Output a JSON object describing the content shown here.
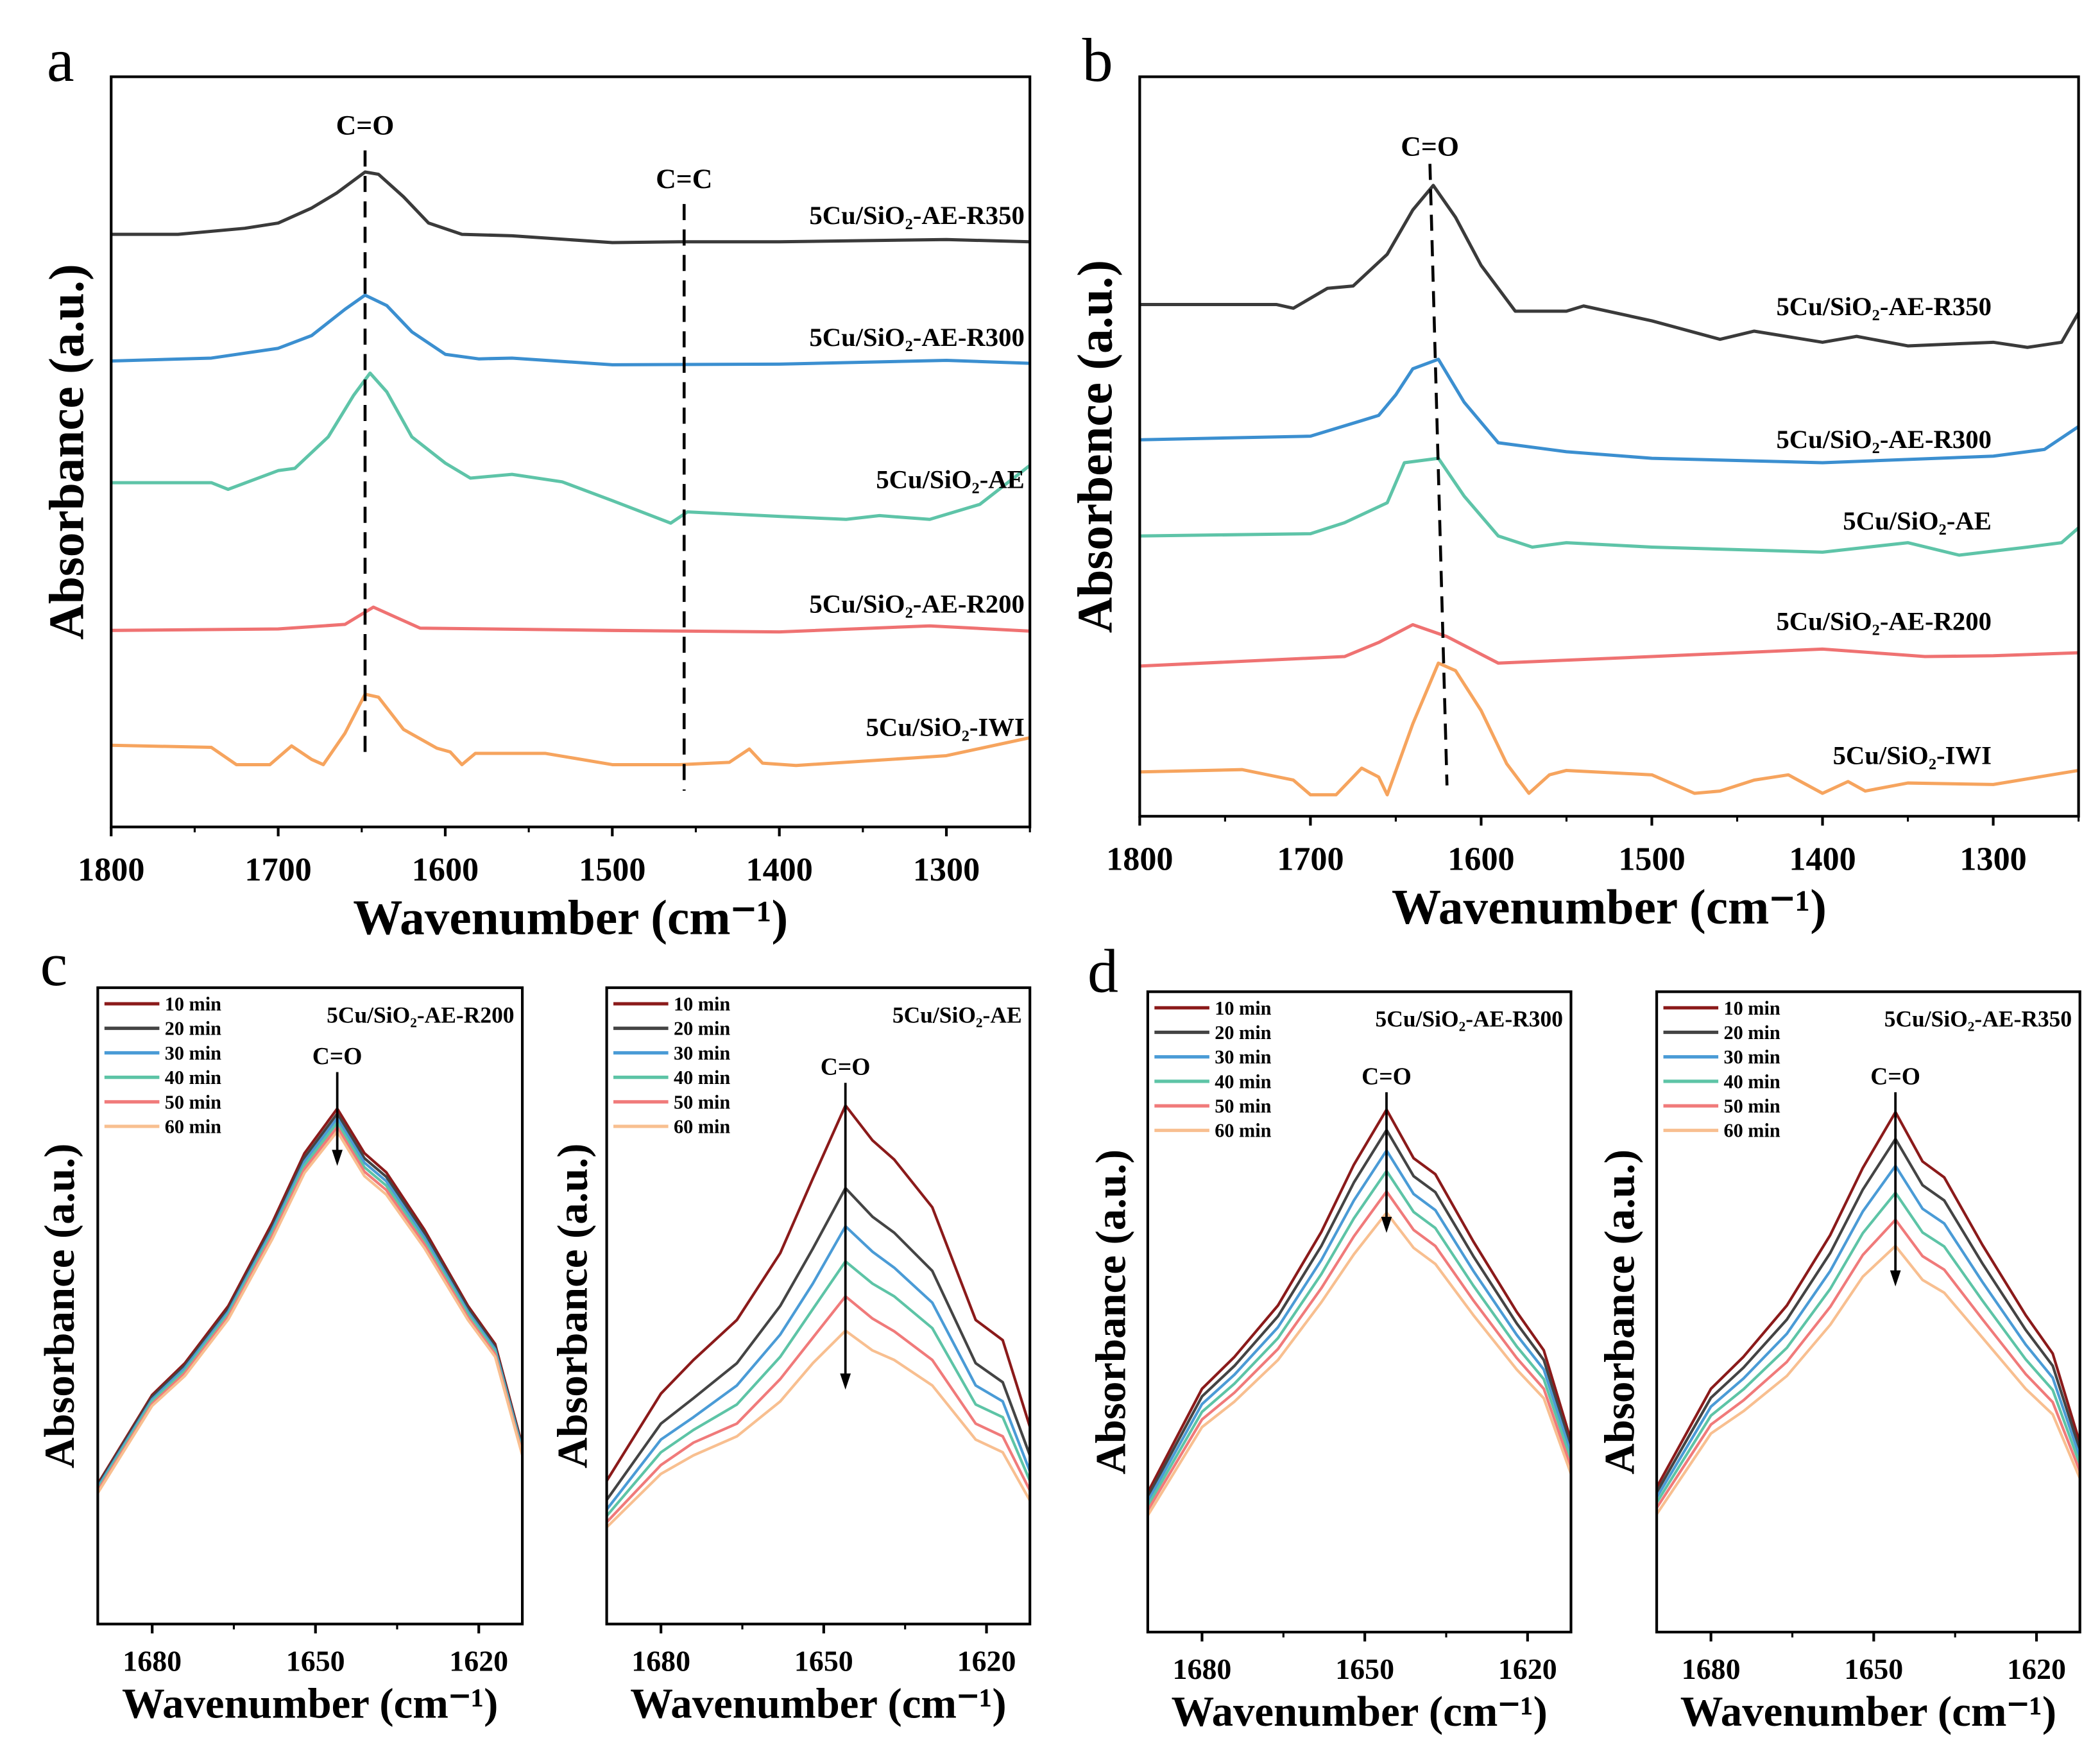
{
  "colors": {
    "R350": "#3a3a3a",
    "R300": "#3b8fd0",
    "AE": "#5ec4a8",
    "R200": "#ef7272",
    "IWI": "#f6a45e",
    "t10": "#8b1a1a",
    "t20": "#444444",
    "t30": "#4a9bd6",
    "t40": "#5dc4a6",
    "t50": "#f07a7a",
    "t60": "#f8bf90"
  },
  "chart_data": [
    {
      "panel": "a",
      "type": "line",
      "xlabel": "Wavenumber (cm⁻¹)",
      "ylabel": "Absorbance (a.u.)",
      "xlim": [
        1800,
        1250
      ],
      "ylim": [
        0,
        100
      ],
      "xticks": [
        "1800",
        "1700",
        "1600",
        "1500",
        "1400",
        "1300"
      ],
      "annotations": [
        {
          "text": "C=O",
          "x": 1648
        },
        {
          "text": "C=C",
          "x": 1457
        }
      ],
      "series": [
        {
          "name": "5Cu/SiO₂-AE-R350",
          "color": "R350",
          "x": [
            1800,
            1760,
            1720,
            1700,
            1680,
            1665,
            1648,
            1640,
            1625,
            1610,
            1590,
            1560,
            1500,
            1460,
            1400,
            1300,
            1250
          ],
          "y": [
            79,
            79,
            79.8,
            80.5,
            82.5,
            84.5,
            87.3,
            87,
            84,
            80.5,
            79,
            78.8,
            77.9,
            78,
            78,
            78.3,
            78
          ]
        },
        {
          "name": "5Cu/SiO₂-AE-R300",
          "color": "R300",
          "x": [
            1800,
            1740,
            1700,
            1680,
            1660,
            1648,
            1635,
            1620,
            1600,
            1580,
            1560,
            1500,
            1400,
            1300,
            1250
          ],
          "y": [
            62.1,
            62.5,
            63.8,
            65.5,
            69,
            70.9,
            69.5,
            66,
            63,
            62.4,
            62.5,
            61.6,
            61.7,
            62.2,
            61.8
          ]
        },
        {
          "name": "5Cu/SiO₂-AE",
          "color": "AE",
          "x": [
            1800,
            1740,
            1730,
            1700,
            1690,
            1670,
            1655,
            1645,
            1635,
            1620,
            1600,
            1585,
            1560,
            1530,
            1500,
            1465,
            1455,
            1400,
            1360,
            1340,
            1310,
            1280,
            1250
          ],
          "y": [
            45.9,
            45.9,
            45,
            47.5,
            47.8,
            52,
            57.5,
            60.5,
            58,
            52,
            48.5,
            46.5,
            47,
            46,
            43.5,
            40.5,
            42,
            41.4,
            41,
            41.5,
            41,
            43,
            48.2
          ]
        },
        {
          "name": "5Cu/SiO₂-AE-R200",
          "color": "R200",
          "x": [
            1800,
            1700,
            1660,
            1643,
            1630,
            1615,
            1500,
            1400,
            1310,
            1250
          ],
          "y": [
            26.2,
            26.4,
            27,
            29.3,
            28,
            26.5,
            26.2,
            26,
            26.8,
            26.1
          ]
        },
        {
          "name": "5Cu/SiO₂-IWI",
          "color": "IWI",
          "x": [
            1800,
            1740,
            1725,
            1705,
            1692,
            1680,
            1673,
            1660,
            1648,
            1640,
            1625,
            1605,
            1597,
            1590,
            1582,
            1540,
            1500,
            1460,
            1430,
            1418,
            1410,
            1390,
            1320,
            1300,
            1250
          ],
          "y": [
            10.9,
            10.6,
            8.3,
            8.3,
            10.8,
            9,
            8.3,
            12.5,
            17.7,
            17.3,
            13,
            10.5,
            10,
            8.3,
            9.8,
            9.8,
            8.3,
            8.3,
            8.6,
            10.4,
            8.5,
            8.2,
            9.2,
            9.5,
            11.9
          ]
        }
      ]
    },
    {
      "panel": "b",
      "type": "line",
      "xlabel": "Wavenumber (cm⁻¹)",
      "ylabel": "Absorbence (a.u.)",
      "xlim": [
        1800,
        1250
      ],
      "ylim": [
        0,
        100
      ],
      "xticks": [
        "1800",
        "1700",
        "1600",
        "1500",
        "1400",
        "1300"
      ],
      "annotations": [
        {
          "text": "C=O",
          "x": 1630
        }
      ],
      "series": [
        {
          "name": "5Cu/SiO₂-AE-R350",
          "color": "R350",
          "x": [
            1800,
            1720,
            1710,
            1690,
            1675,
            1655,
            1640,
            1628,
            1615,
            1600,
            1580,
            1550,
            1540,
            1500,
            1460,
            1440,
            1400,
            1380,
            1350,
            1300,
            1280,
            1260,
            1250
          ],
          "y": [
            69.2,
            69.2,
            68.7,
            71.4,
            71.7,
            76,
            82,
            85.3,
            81,
            74.5,
            68.3,
            68.3,
            69,
            67,
            64.5,
            65.6,
            64.1,
            64.9,
            63.6,
            64.1,
            63.4,
            64.1,
            68.1
          ]
        },
        {
          "name": "5Cu/SiO₂-AE-R300",
          "color": "R300",
          "x": [
            1800,
            1700,
            1670,
            1660,
            1650,
            1640,
            1625,
            1610,
            1590,
            1550,
            1500,
            1400,
            1300,
            1270,
            1250
          ],
          "y": [
            50.9,
            51.4,
            53.5,
            54.2,
            57,
            60.5,
            61.8,
            56,
            50.5,
            49.3,
            48.4,
            47.8,
            48.7,
            49.6,
            52.7
          ]
        },
        {
          "name": "5Cu/SiO₂-AE",
          "color": "AE",
          "x": [
            1800,
            1700,
            1680,
            1655,
            1645,
            1625,
            1610,
            1590,
            1570,
            1550,
            1500,
            1400,
            1350,
            1320,
            1280,
            1260,
            1250
          ],
          "y": [
            37.9,
            38.2,
            39.7,
            42.4,
            47.8,
            48.4,
            43.3,
            37.9,
            36.4,
            37,
            36.4,
            35.7,
            37,
            35.3,
            36.4,
            37,
            39
          ]
        },
        {
          "name": "5Cu/SiO₂-AE-R200",
          "color": "R200",
          "x": [
            1800,
            1680,
            1660,
            1640,
            1620,
            1600,
            1590,
            1500,
            1400,
            1340,
            1300,
            1250
          ],
          "y": [
            20.3,
            21.6,
            23.5,
            25.9,
            24.3,
            21.9,
            20.7,
            21.6,
            22.6,
            21.6,
            21.7,
            22.1
          ]
        },
        {
          "name": "5Cu/SiO₂-IWI",
          "color": "IWI",
          "x": [
            1800,
            1740,
            1710,
            1700,
            1685,
            1670,
            1660,
            1655,
            1640,
            1625,
            1615,
            1600,
            1585,
            1572,
            1560,
            1550,
            1500,
            1475,
            1460,
            1440,
            1420,
            1400,
            1385,
            1375,
            1350,
            1300,
            1250
          ],
          "y": [
            6,
            6.3,
            4.9,
            2.9,
            2.9,
            6.5,
            5.3,
            2.9,
            12.5,
            20.7,
            19.7,
            14.3,
            7.1,
            3.1,
            5.6,
            6.2,
            5.6,
            3.1,
            3.4,
            4.9,
            5.6,
            3.1,
            4.7,
            3.4,
            4.5,
            4.3,
            6.2
          ]
        }
      ]
    },
    {
      "panel": "c",
      "subtitle": "5Cu/SiO₂-AE-R200",
      "type": "line",
      "xlabel": "Wavenumber (cm⁻¹)",
      "ylabel": "Absorbance (a.u.)",
      "xlim": [
        1690,
        1612
      ],
      "ylim": [
        0,
        100
      ],
      "xticks": [
        "1680",
        "1650",
        "1620"
      ],
      "annotations": [
        {
          "text": "C=O",
          "x": 1646
        }
      ],
      "legend": "top-left",
      "x": [
        1690,
        1680,
        1674,
        1666,
        1658,
        1652,
        1646,
        1641,
        1637,
        1630,
        1622,
        1617,
        1612
      ],
      "series": [
        {
          "name": "10 min",
          "color": "t10",
          "y": [
            22,
            36,
            41,
            50,
            63,
            74,
            81,
            74,
            71,
            62,
            50,
            44,
            28
          ]
        },
        {
          "name": "20 min",
          "color": "t20",
          "y": [
            21.8,
            35.7,
            40.6,
            49.5,
            62.4,
            73.3,
            80.2,
            73.2,
            70.3,
            61.4,
            49.6,
            43.6,
            27.7
          ]
        },
        {
          "name": "30 min",
          "color": "t30",
          "y": [
            21.5,
            35.3,
            40.2,
            49.1,
            61.9,
            72.7,
            79.5,
            72.5,
            69.6,
            60.8,
            49.1,
            43.2,
            27.4
          ]
        },
        {
          "name": "40 min",
          "color": "t40",
          "y": [
            21.2,
            35.0,
            39.8,
            48.7,
            61.4,
            72.1,
            78.8,
            71.8,
            68.9,
            60.2,
            48.7,
            42.8,
            27.1
          ]
        },
        {
          "name": "50 min",
          "color": "t50",
          "y": [
            20.9,
            34.6,
            39.4,
            48.3,
            60.9,
            71.5,
            78.1,
            71.1,
            68.2,
            59.7,
            48.2,
            42.4,
            26.8
          ]
        },
        {
          "name": "60 min",
          "color": "t60",
          "y": [
            20.6,
            34.3,
            39.0,
            47.9,
            60.4,
            70.9,
            77.4,
            70.4,
            67.5,
            59.1,
            47.8,
            42.0,
            26.5
          ]
        }
      ]
    },
    {
      "panel": "c",
      "subtitle": "5Cu/SiO₂-AE",
      "type": "line",
      "xlabel": "Wavenumber (cm⁻¹)",
      "ylabel": "Absorbance (a.u.)",
      "xlim": [
        1690,
        1612
      ],
      "ylim": [
        0,
        100
      ],
      "xticks": [
        "1680",
        "1650",
        "1620"
      ],
      "annotations": [
        {
          "text": "C=O",
          "x": 1646
        }
      ],
      "legend": "top-left",
      "x": [
        1690,
        1680,
        1674,
        1666,
        1658,
        1652,
        1646,
        1641,
        1637,
        1630,
        1622,
        1617,
        1612
      ],
      "series": [
        {
          "name": "10 min",
          "color": "t10",
          "y": [
            22.5,
            36.2,
            41.5,
            47.8,
            58.3,
            70,
            81.5,
            76,
            73,
            65.5,
            47.8,
            44.6,
            31
          ]
        },
        {
          "name": "20 min",
          "color": "t20",
          "y": [
            19.5,
            31.5,
            35.5,
            41,
            50,
            59,
            68.5,
            64,
            61.5,
            55.5,
            41,
            38,
            26.5
          ]
        },
        {
          "name": "30 min",
          "color": "t30",
          "y": [
            18,
            29,
            32.5,
            37.5,
            45.5,
            53.5,
            62.5,
            58.5,
            56,
            50.5,
            37.5,
            35,
            24
          ]
        },
        {
          "name": "40 min",
          "color": "t40",
          "y": [
            17,
            27,
            30.5,
            34.5,
            42,
            49.5,
            57,
            53.5,
            51.5,
            46.5,
            34.5,
            32.5,
            22.5
          ]
        },
        {
          "name": "50 min",
          "color": "t50",
          "y": [
            16,
            25,
            28.5,
            31.5,
            38.5,
            45,
            51.5,
            48,
            46,
            41.5,
            31.5,
            29.5,
            21
          ]
        },
        {
          "name": "60 min",
          "color": "t60",
          "y": [
            15.2,
            23.6,
            26.5,
            29.5,
            35,
            41,
            46.1,
            43,
            41.5,
            37.5,
            29,
            27,
            19.4
          ]
        }
      ]
    },
    {
      "panel": "d",
      "subtitle": "5Cu/SiO₂-AE-R300",
      "type": "line",
      "xlabel": "Wavenumber (cm⁻¹)",
      "ylabel": "Absorbance (a.u.)",
      "xlim": [
        1690,
        1612
      ],
      "ylim": [
        0,
        100
      ],
      "xticks": [
        "1680",
        "1650",
        "1620"
      ],
      "annotations": [
        {
          "text": "C=O",
          "x": 1646
        }
      ],
      "legend": "top-left",
      "x": [
        1690,
        1680,
        1674,
        1666,
        1658,
        1652,
        1646,
        1641,
        1637,
        1630,
        1622,
        1617,
        1612
      ],
      "series": [
        {
          "name": "10 min",
          "color": "t10",
          "y": [
            21.8,
            38,
            43,
            51,
            62.5,
            73,
            81.6,
            74,
            71.5,
            61,
            50,
            44,
            29.9
          ]
        },
        {
          "name": "20 min",
          "color": "t20",
          "y": [
            21.1,
            36.8,
            41.6,
            49.3,
            60.3,
            70.2,
            78.4,
            71.2,
            68.7,
            58.7,
            48.2,
            42.5,
            28.9
          ]
        },
        {
          "name": "30 min",
          "color": "t30",
          "y": [
            20.4,
            35.6,
            40.2,
            47.6,
            58.1,
            67.4,
            75.2,
            68.4,
            65.9,
            56.4,
            46.4,
            41.0,
            27.9
          ]
        },
        {
          "name": "40 min",
          "color": "t40",
          "y": [
            19.7,
            34.4,
            38.8,
            45.9,
            55.9,
            64.6,
            72.0,
            65.6,
            63.1,
            54.1,
            44.6,
            39.5,
            26.9
          ]
        },
        {
          "name": "50 min",
          "color": "t50",
          "y": [
            19.0,
            33.2,
            37.4,
            44.2,
            53.7,
            61.8,
            68.8,
            62.8,
            60.3,
            51.8,
            42.8,
            38.0,
            25.8
          ]
        },
        {
          "name": "60 min",
          "color": "t60",
          "y": [
            18.2,
            32.0,
            36.0,
            42.5,
            51.5,
            59.0,
            65.5,
            60.0,
            57.5,
            49.5,
            41.0,
            36.5,
            24.7
          ]
        }
      ]
    },
    {
      "panel": "d",
      "subtitle": "5Cu/SiO₂-AE-R350",
      "type": "line",
      "xlabel": "Wavenumber (cm⁻¹)",
      "ylabel": "Absorbance (a.u.)",
      "xlim": [
        1690,
        1612
      ],
      "ylim": [
        0,
        100
      ],
      "xticks": [
        "1680",
        "1650",
        "1620"
      ],
      "annotations": [
        {
          "text": "C=O",
          "x": 1646
        }
      ],
      "legend": "top-left",
      "x": [
        1690,
        1680,
        1674,
        1666,
        1658,
        1652,
        1646,
        1641,
        1637,
        1630,
        1622,
        1617,
        1612
      ],
      "series": [
        {
          "name": "10 min",
          "color": "t10",
          "y": [
            22.6,
            38,
            43,
            51,
            62,
            72.5,
            81.2,
            73.5,
            71,
            60.5,
            49.5,
            43.5,
            29.5
          ]
        },
        {
          "name": "20 min",
          "color": "t20",
          "y": [
            21.8,
            36.6,
            41.3,
            48.8,
            59.2,
            69.1,
            77.0,
            69.8,
            67.4,
            57.6,
            47.2,
            41.6,
            28.4
          ]
        },
        {
          "name": "30 min",
          "color": "t30",
          "y": [
            21.0,
            35.2,
            39.6,
            46.6,
            56.4,
            65.7,
            72.8,
            66.1,
            63.8,
            54.7,
            44.9,
            39.7,
            27.3
          ]
        },
        {
          "name": "40 min",
          "color": "t40",
          "y": [
            20.2,
            33.8,
            37.9,
            44.4,
            53.6,
            62.3,
            68.6,
            62.4,
            60.2,
            51.8,
            42.6,
            37.8,
            26.2
          ]
        },
        {
          "name": "50 min",
          "color": "t50",
          "y": [
            19.4,
            32.4,
            36.2,
            42.2,
            50.8,
            58.9,
            64.4,
            58.7,
            56.6,
            48.9,
            40.3,
            35.9,
            25.1
          ]
        },
        {
          "name": "60 min",
          "color": "t60",
          "y": [
            18.4,
            31.0,
            34.5,
            40.0,
            48.0,
            55.5,
            60.3,
            55.0,
            53.0,
            46.0,
            38.0,
            34.0,
            24.0
          ]
        }
      ]
    }
  ]
}
